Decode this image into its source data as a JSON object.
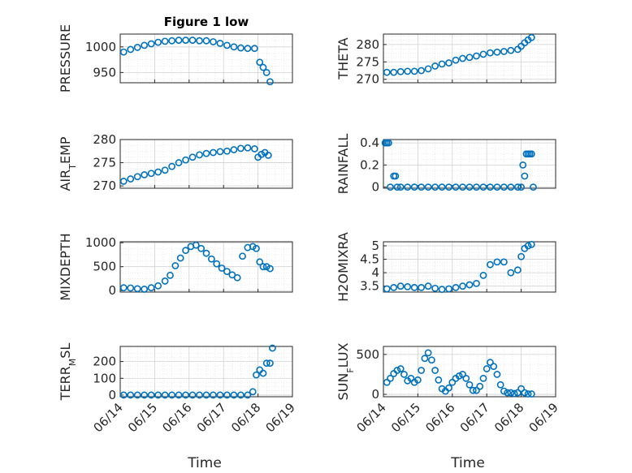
{
  "figure": {
    "title": "Figure 1 low",
    "x_axis_label": "Time",
    "marker_color": "#0072BD"
  },
  "chart_data": [
    {
      "type": "scatter",
      "name": "PRESSURE",
      "ylabel": "PRESSURE",
      "xlabel": "",
      "xlim": [
        0,
        5
      ],
      "ylim": [
        930,
        1025
      ],
      "yticks": [
        950,
        1000
      ],
      "xticks": [
        "06/14",
        "06/15",
        "06/16",
        "06/17",
        "06/18",
        "06/19"
      ],
      "show_xticklabels": false,
      "grid": true,
      "minor_grid": true,
      "x": [
        0.1,
        0.3,
        0.5,
        0.7,
        0.9,
        1.1,
        1.3,
        1.5,
        1.7,
        1.9,
        2.1,
        2.3,
        2.5,
        2.7,
        2.9,
        3.1,
        3.3,
        3.5,
        3.7,
        3.9,
        4.05,
        4.15,
        4.25,
        4.35
      ],
      "y": [
        990,
        995,
        999,
        1003,
        1006,
        1009,
        1011,
        1012,
        1013,
        1013,
        1013,
        1012,
        1012,
        1010,
        1007,
        1003,
        1000,
        998,
        997,
        997,
        970,
        960,
        950,
        932
      ]
    },
    {
      "type": "scatter",
      "name": "THETA",
      "ylabel": "THETA",
      "xlabel": "",
      "xlim": [
        0,
        5
      ],
      "ylim": [
        269,
        283
      ],
      "yticks": [
        270,
        275,
        280
      ],
      "xticks": [
        "06/14",
        "06/15",
        "06/16",
        "06/17",
        "06/18",
        "06/19"
      ],
      "show_xticklabels": false,
      "grid": true,
      "minor_grid": true,
      "x": [
        0.1,
        0.3,
        0.5,
        0.7,
        0.9,
        1.1,
        1.3,
        1.5,
        1.7,
        1.9,
        2.1,
        2.3,
        2.5,
        2.7,
        2.9,
        3.1,
        3.3,
        3.5,
        3.7,
        3.9,
        4.0,
        4.1,
        4.2,
        4.3
      ],
      "y": [
        272,
        272,
        272.2,
        272.3,
        272.3,
        272.5,
        273,
        273.8,
        274.4,
        274.7,
        275.5,
        276,
        276.3,
        276.7,
        277.2,
        277.6,
        277.8,
        278,
        278.3,
        278.6,
        279.5,
        280.5,
        281.3,
        282
      ]
    },
    {
      "type": "scatter",
      "name": "AIR_TEMP",
      "ylabel": "AIR_TEMP",
      "xlabel": "",
      "xlim": [
        0,
        5
      ],
      "ylim": [
        269.5,
        280
      ],
      "yticks": [
        270,
        275,
        280
      ],
      "xticks": [
        "06/14",
        "06/15",
        "06/16",
        "06/17",
        "06/18",
        "06/19"
      ],
      "show_xticklabels": false,
      "grid": true,
      "minor_grid": true,
      "x": [
        0.1,
        0.3,
        0.5,
        0.7,
        0.9,
        1.1,
        1.3,
        1.5,
        1.7,
        1.9,
        2.1,
        2.3,
        2.5,
        2.7,
        2.9,
        3.1,
        3.3,
        3.5,
        3.7,
        3.9,
        4.0,
        4.1,
        4.2,
        4.3
      ],
      "y": [
        271,
        271.5,
        272,
        272.4,
        272.7,
        273,
        273.4,
        274.2,
        275,
        275.6,
        276.2,
        276.7,
        277,
        277.2,
        277.4,
        277.5,
        277.8,
        278.1,
        278.2,
        278,
        276.2,
        276.8,
        277.2,
        276.6
      ]
    },
    {
      "type": "scatter",
      "name": "RAINFALL",
      "ylabel": "RAINFALL",
      "xlabel": "",
      "xlim": [
        0,
        5
      ],
      "ylim": [
        -0.01,
        0.43
      ],
      "yticks": [
        0,
        0.2,
        0.4
      ],
      "ytick_labels": [
        "0",
        "0.2",
        "0.4"
      ],
      "xticks": [
        "06/14",
        "06/15",
        "06/16",
        "06/17",
        "06/18",
        "06/19"
      ],
      "show_xticklabels": false,
      "grid": true,
      "minor_grid": true,
      "x": [
        0.05,
        0.1,
        0.15,
        0.2,
        0.3,
        0.35,
        0.4,
        0.5,
        0.7,
        0.9,
        1.1,
        1.3,
        1.5,
        1.7,
        1.9,
        2.1,
        2.3,
        2.5,
        2.7,
        2.9,
        3.1,
        3.3,
        3.5,
        3.7,
        3.9,
        4.0,
        4.05,
        4.1,
        4.15,
        4.2,
        4.25,
        4.3,
        4.35
      ],
      "y": [
        0.4,
        0.4,
        0.4,
        0,
        0.1,
        0.1,
        0,
        0,
        0,
        0,
        0,
        0,
        0,
        0,
        0,
        0,
        0,
        0,
        0,
        0,
        0,
        0,
        0,
        0,
        0,
        0,
        0.2,
        0.1,
        0.3,
        0.3,
        0.3,
        0.3,
        0
      ]
    },
    {
      "type": "scatter",
      "name": "MIXDEPTH",
      "ylabel": "MIXDEPTH",
      "xlabel": "",
      "xlim": [
        0,
        5
      ],
      "ylim": [
        -30,
        1020
      ],
      "yticks": [
        0,
        500,
        1000
      ],
      "xticks": [
        "06/14",
        "06/15",
        "06/16",
        "06/17",
        "06/18",
        "06/19"
      ],
      "show_xticklabels": false,
      "grid": true,
      "minor_grid": true,
      "x": [
        0.1,
        0.3,
        0.5,
        0.7,
        0.9,
        1.1,
        1.3,
        1.45,
        1.6,
        1.75,
        1.9,
        2.05,
        2.2,
        2.35,
        2.5,
        2.65,
        2.8,
        2.95,
        3.1,
        3.25,
        3.4,
        3.55,
        3.7,
        3.85,
        3.95,
        4.05,
        4.15,
        4.25,
        4.35
      ],
      "y": [
        60,
        55,
        40,
        30,
        60,
        100,
        200,
        320,
        520,
        680,
        840,
        920,
        950,
        880,
        780,
        660,
        560,
        470,
        400,
        330,
        270,
        720,
        900,
        920,
        880,
        600,
        500,
        500,
        460
      ]
    },
    {
      "type": "scatter",
      "name": "H2OMIXRA",
      "ylabel": "H2OMIXRA",
      "xlabel": "",
      "xlim": [
        0,
        5
      ],
      "ylim": [
        3.28,
        5.15
      ],
      "yticks": [
        3.5,
        4,
        4.5,
        5
      ],
      "ytick_labels": [
        "3.5",
        "4",
        "4.5",
        "5"
      ],
      "xticks": [
        "06/14",
        "06/15",
        "06/16",
        "06/17",
        "06/18",
        "06/19"
      ],
      "show_xticklabels": false,
      "grid": true,
      "minor_grid": true,
      "x": [
        0.1,
        0.3,
        0.5,
        0.7,
        0.9,
        1.1,
        1.3,
        1.5,
        1.7,
        1.9,
        2.1,
        2.3,
        2.5,
        2.7,
        2.9,
        3.1,
        3.3,
        3.5,
        3.7,
        3.9,
        4.0,
        4.1,
        4.2,
        4.3
      ],
      "y": [
        3.4,
        3.45,
        3.5,
        3.48,
        3.45,
        3.45,
        3.5,
        3.42,
        3.38,
        3.4,
        3.45,
        3.5,
        3.55,
        3.6,
        3.9,
        4.3,
        4.4,
        4.4,
        4.0,
        4.1,
        4.6,
        4.9,
        5.0,
        5.05
      ]
    },
    {
      "type": "scatter",
      "name": "TERR_MSL",
      "ylabel": "TERR_MSL",
      "xlabel": "Time",
      "xlim": [
        0,
        5
      ],
      "ylim": [
        -10,
        290
      ],
      "yticks": [
        0,
        100,
        200
      ],
      "xticks": [
        "06/14",
        "06/15",
        "06/16",
        "06/17",
        "06/18",
        "06/19"
      ],
      "show_xticklabels": true,
      "grid": true,
      "minor_grid": true,
      "x": [
        0.1,
        0.3,
        0.5,
        0.7,
        0.9,
        1.1,
        1.3,
        1.5,
        1.7,
        1.9,
        2.1,
        2.3,
        2.5,
        2.7,
        2.9,
        3.1,
        3.3,
        3.5,
        3.7,
        3.85,
        3.95,
        4.05,
        4.15,
        4.25,
        4.35,
        4.42
      ],
      "y": [
        0,
        0,
        0,
        0,
        0,
        0,
        0,
        0,
        0,
        0,
        0,
        0,
        0,
        0,
        0,
        0,
        0,
        0,
        0,
        20,
        120,
        150,
        130,
        190,
        190,
        280
      ]
    },
    {
      "type": "scatter",
      "name": "SUN_FLUX",
      "ylabel": "SUN_FLUX",
      "xlabel": "Time",
      "xlim": [
        0,
        5
      ],
      "ylim": [
        -30,
        600
      ],
      "yticks": [
        0,
        500
      ],
      "xticks": [
        "06/14",
        "06/15",
        "06/16",
        "06/17",
        "06/18",
        "06/19"
      ],
      "show_xticklabels": true,
      "grid": true,
      "minor_grid": true,
      "x": [
        0.1,
        0.2,
        0.3,
        0.4,
        0.5,
        0.6,
        0.7,
        0.8,
        0.9,
        1.0,
        1.1,
        1.2,
        1.3,
        1.4,
        1.5,
        1.6,
        1.7,
        1.8,
        1.9,
        2.0,
        2.1,
        2.2,
        2.3,
        2.4,
        2.5,
        2.6,
        2.7,
        2.8,
        2.9,
        3.0,
        3.1,
        3.2,
        3.3,
        3.4,
        3.5,
        3.6,
        3.7,
        3.8,
        3.9,
        4.0,
        4.1,
        4.2,
        4.3
      ],
      "y": [
        150,
        200,
        260,
        300,
        320,
        250,
        170,
        200,
        150,
        180,
        300,
        450,
        520,
        430,
        300,
        180,
        70,
        40,
        80,
        150,
        200,
        230,
        250,
        200,
        120,
        50,
        50,
        100,
        200,
        320,
        400,
        350,
        250,
        120,
        40,
        20,
        20,
        10,
        20,
        70,
        20,
        5,
        5
      ]
    }
  ]
}
